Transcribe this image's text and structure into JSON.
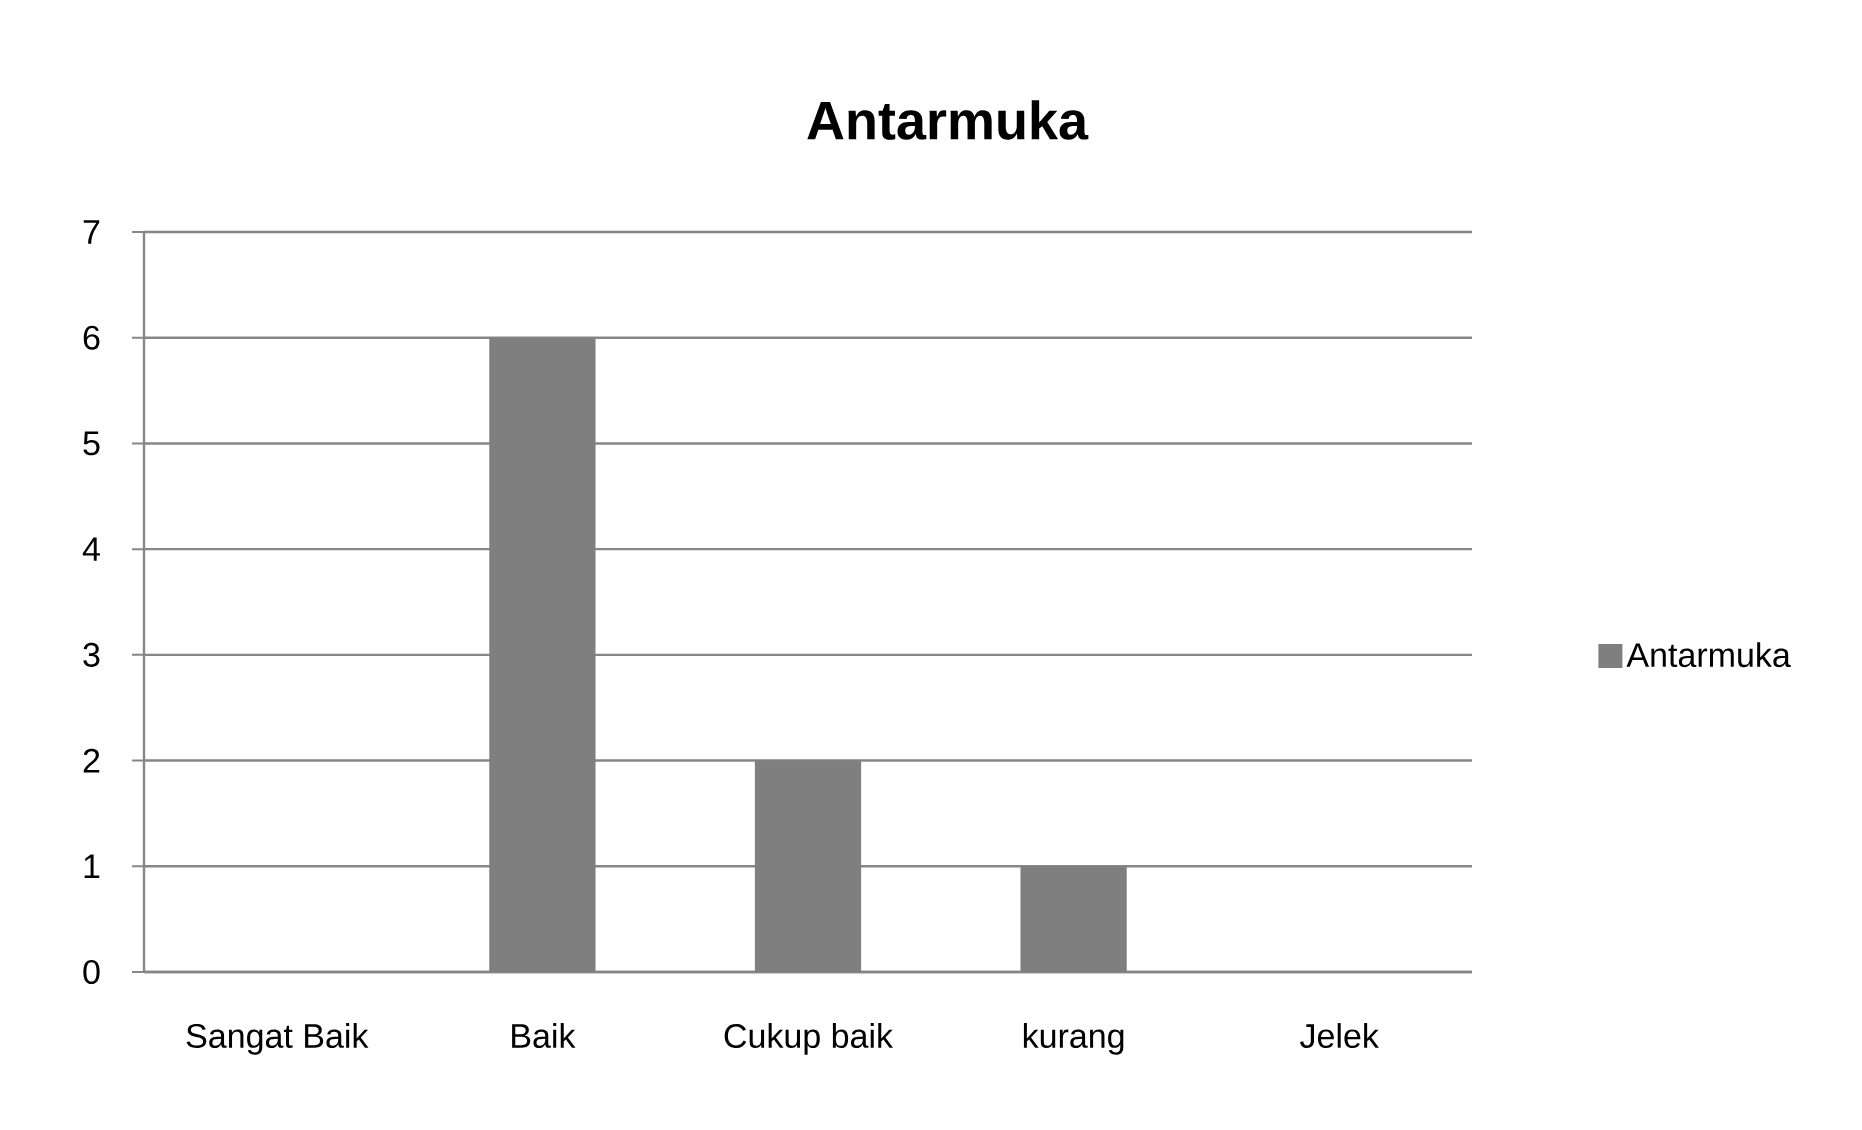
{
  "chart_data": {
    "type": "bar",
    "title": "Antarmuka",
    "categories": [
      "Sangat Baik",
      "Baik",
      "Cukup baik",
      "kurang",
      "Jelek"
    ],
    "series": [
      {
        "name": "Antarmuka",
        "color": "#7f7f7f",
        "values": [
          0,
          6,
          2,
          1,
          0
        ]
      }
    ],
    "ylim": [
      0,
      7
    ],
    "yticks": [
      0,
      1,
      2,
      3,
      4,
      5,
      6,
      7
    ],
    "grid": "y",
    "legend": "right"
  }
}
